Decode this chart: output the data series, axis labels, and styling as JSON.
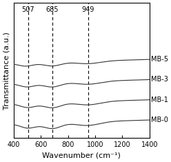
{
  "title": "",
  "xlabel": "Wavenumber (cm⁻¹)",
  "ylabel": "Transmittance (a.u.)",
  "xlim": [
    400,
    1400
  ],
  "xmin": 400,
  "xmax": 1400,
  "xticks": [
    400,
    600,
    800,
    1000,
    1200,
    1400
  ],
  "vlines": [
    507,
    685,
    949
  ],
  "vline_labels": [
    "507",
    "685",
    "949"
  ],
  "series_labels": [
    "MB-5",
    "MB-3",
    "MB-1",
    "MB-0"
  ],
  "offsets": [
    3.0,
    2.0,
    1.0,
    0.0
  ],
  "background_color": "#ffffff",
  "line_color": "#333333",
  "vline_color": "#333333",
  "font_size": 8,
  "label_fontsize": 8
}
